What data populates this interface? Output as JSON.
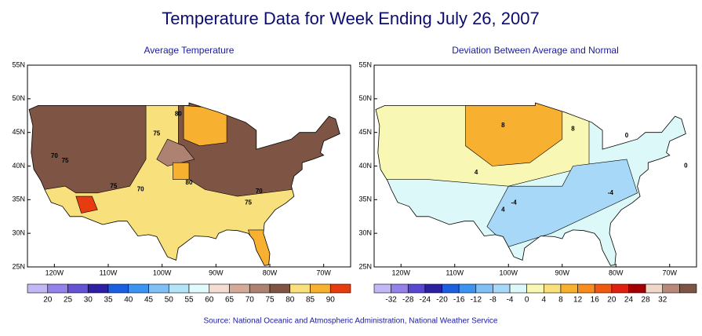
{
  "title": "Temperature Data for Week Ending July 26, 2007",
  "panels": [
    {
      "title": "Average Temperature",
      "lat_labels": [
        "55N",
        "50N",
        "45N",
        "40N",
        "35N",
        "30N",
        "25N"
      ],
      "lon_labels": [
        "120W",
        "110W",
        "100W",
        "90W",
        "80W",
        "70W"
      ],
      "legend": {
        "labels": [
          20,
          25,
          30,
          35,
          40,
          45,
          50,
          55,
          60,
          65,
          70,
          75,
          80,
          85,
          90
        ],
        "colors": [
          "#c4b8f4",
          "#9482ea",
          "#6454d4",
          "#2c20a0",
          "#1c5ee0",
          "#3c94f0",
          "#80c0f4",
          "#b4e4f8",
          "#e4fafa",
          "#f4dcd0",
          "#d4aa98",
          "#ae8272",
          "#7e5444",
          "#f8e07c",
          "#f8b030",
          "#e63c10"
        ]
      },
      "contour_labels": [
        80,
        75,
        70,
        75,
        75,
        70,
        80,
        70,
        75
      ]
    },
    {
      "title": "Deviation Between Average and Normal",
      "lat_labels": [
        "55N",
        "50N",
        "45N",
        "40N",
        "35N",
        "30N",
        "25N"
      ],
      "lon_labels": [
        "120W",
        "110W",
        "100W",
        "90W",
        "80W",
        "70W"
      ],
      "legend": {
        "labels": [
          -32,
          -28,
          -24,
          -20,
          -16,
          -12,
          -8,
          -4,
          0,
          4,
          8,
          12,
          16,
          20,
          24,
          28,
          32
        ],
        "colors": [
          "#c4b8f4",
          "#9482ea",
          "#5848d0",
          "#2c20a0",
          "#1c5ee0",
          "#3c94f0",
          "#80c0f4",
          "#a8d8f8",
          "#dcf8f8",
          "#f8f8b4",
          "#f8e07c",
          "#f8b030",
          "#f88c1c",
          "#f05a10",
          "#e02010",
          "#a40000",
          "#f0d8c8",
          "#b88878",
          "#7e5444"
        ]
      },
      "contour_labels": [
        8,
        8,
        4,
        0,
        -4,
        4,
        -4,
        0
      ]
    }
  ],
  "source": "Source:  National Oceanic and Atmospheric Administration, National Weather Service"
}
